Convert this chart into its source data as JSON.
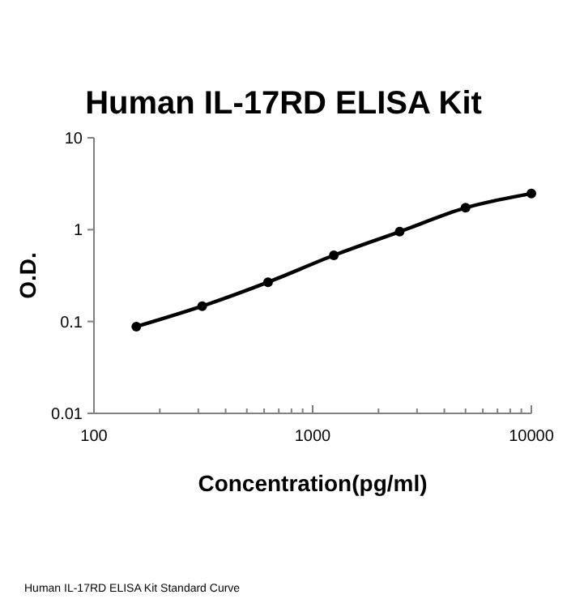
{
  "chart_data": {
    "type": "line",
    "title": "Human IL-17RD ELISA Kit",
    "xlabel": "Concentration(pg/ml)",
    "ylabel": "O.D.",
    "log": "xy",
    "x": [
      156.25,
      312.5,
      625,
      1250,
      2500,
      5000,
      10000
    ],
    "series": [
      {
        "color": "#000000",
        "values": [
          0.088,
          0.147,
          0.268,
          0.525,
          0.95,
          1.73,
          2.47
        ]
      }
    ],
    "xlim": [
      100,
      10000
    ],
    "ylim": [
      0.01,
      10
    ],
    "xticks": [
      100,
      {
        "value": 200,
        "label": null
      },
      {
        "value": 300,
        "label": null
      },
      {
        "value": 400,
        "label": null
      },
      {
        "value": 500,
        "label": null
      },
      {
        "value": 600,
        "label": null
      },
      {
        "value": 700,
        "label": null
      },
      {
        "value": 800,
        "label": null
      },
      {
        "value": 900,
        "label": null
      },
      1000,
      {
        "value": 2000,
        "label": null
      },
      {
        "value": 3000,
        "label": null
      },
      {
        "value": 4000,
        "label": null
      },
      {
        "value": 5000,
        "label": null
      },
      {
        "value": 6000,
        "label": null
      },
      {
        "value": 7000,
        "label": null
      },
      {
        "value": 8000,
        "label": null
      },
      {
        "value": 9000,
        "label": null
      },
      10000
    ],
    "yticks": [
      0.01,
      0.1,
      1,
      10
    ],
    "marker": "circle",
    "line_style": "solid",
    "grid": false,
    "annotations": [
      "Human IL-17RD ELISA Kit Standard Curve"
    ]
  }
}
